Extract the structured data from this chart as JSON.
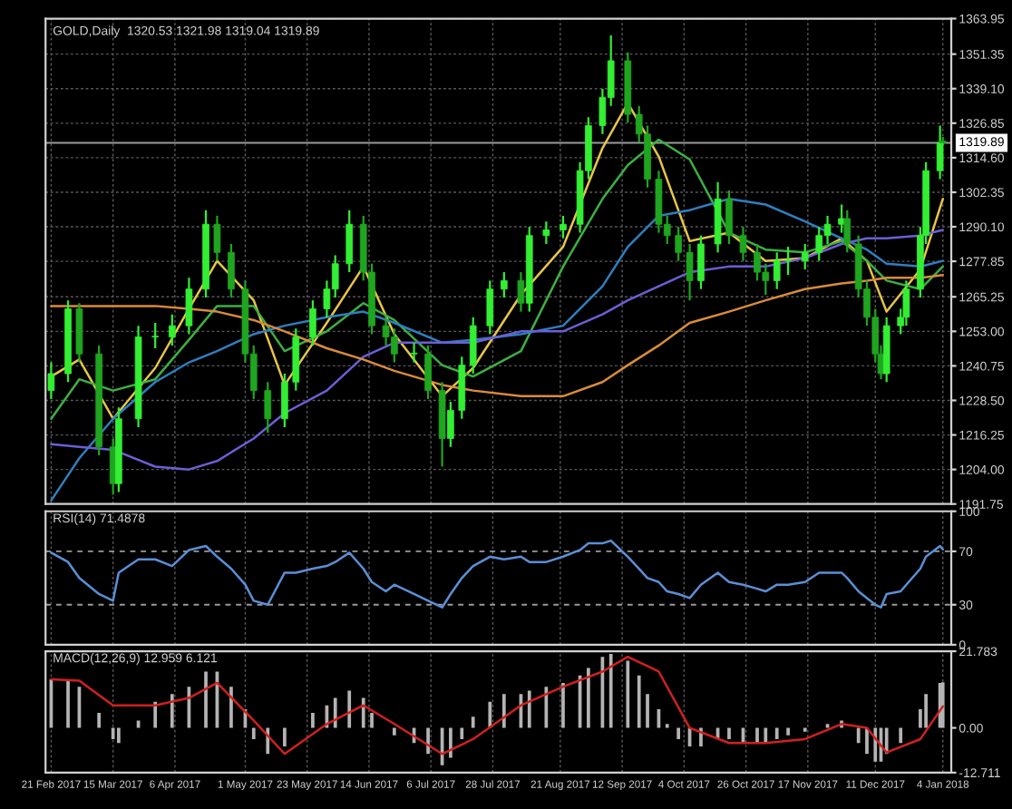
{
  "chart_data": [
    {
      "type": "candlestick",
      "annotations": [
        "GOLD,Daily  1320.53 1321.98 1319.04 1319.89"
      ],
      "x": [
        "2017-02-21",
        "2017-02-27",
        "2017-03-03",
        "2017-03-10",
        "2017-03-15",
        "2017-03-17",
        "2017-03-24",
        "2017-03-30",
        "2017-04-05",
        "2017-04-11",
        "2017-04-17",
        "2017-04-21",
        "2017-04-26",
        "2017-05-01",
        "2017-05-04",
        "2017-05-09",
        "2017-05-15",
        "2017-05-19",
        "2017-05-25",
        "2017-05-30",
        "2017-06-02",
        "2017-06-07",
        "2017-06-12",
        "2017-06-15",
        "2017-06-20",
        "2017-06-23",
        "2017-06-30",
        "2017-07-05",
        "2017-07-10",
        "2017-07-13",
        "2017-07-17",
        "2017-07-21",
        "2017-07-27",
        "2017-08-01",
        "2017-08-07",
        "2017-08-10",
        "2017-08-16",
        "2017-08-22",
        "2017-08-28",
        "2017-08-31",
        "2017-09-05",
        "2017-09-08",
        "2017-09-14",
        "2017-09-18",
        "2017-09-21",
        "2017-09-25",
        "2017-09-28",
        "2017-10-02",
        "2017-10-06",
        "2017-10-10",
        "2017-10-16",
        "2017-10-20",
        "2017-10-25",
        "2017-10-30",
        "2017-11-02",
        "2017-11-06",
        "2017-11-10",
        "2017-11-16",
        "2017-11-21",
        "2017-11-24",
        "2017-11-29",
        "2017-12-01",
        "2017-12-05",
        "2017-12-08",
        "2017-12-11",
        "2017-12-13",
        "2017-12-15",
        "2017-12-20",
        "2017-12-22",
        "2017-12-27",
        "2017-12-29",
        "2018-01-03",
        "2018-01-04"
      ],
      "ohlc": [
        [
          1232,
          1242,
          1229,
          1238
        ],
        [
          1238,
          1264,
          1235,
          1261
        ],
        [
          1261,
          1263,
          1242,
          1245
        ],
        [
          1245,
          1248,
          1209,
          1212
        ],
        [
          1212,
          1215,
          1195,
          1199
        ],
        [
          1199,
          1226,
          1196,
          1222
        ],
        [
          1222,
          1255,
          1219,
          1251
        ],
        [
          1251,
          1256,
          1247,
          1251
        ],
        [
          1251,
          1259,
          1248,
          1255
        ],
        [
          1255,
          1272,
          1252,
          1268
        ],
        [
          1268,
          1296,
          1265,
          1291
        ],
        [
          1291,
          1294,
          1278,
          1281
        ],
        [
          1281,
          1284,
          1265,
          1268
        ],
        [
          1268,
          1271,
          1242,
          1245
        ],
        [
          1245,
          1248,
          1229,
          1232
        ],
        [
          1232,
          1235,
          1217,
          1222
        ],
        [
          1222,
          1238,
          1219,
          1235
        ],
        [
          1235,
          1254,
          1232,
          1251
        ],
        [
          1251,
          1264,
          1248,
          1261
        ],
        [
          1261,
          1271,
          1258,
          1268
        ],
        [
          1268,
          1280,
          1265,
          1277
        ],
        [
          1277,
          1296,
          1274,
          1291
        ],
        [
          1291,
          1294,
          1271,
          1274
        ],
        [
          1274,
          1277,
          1252,
          1255
        ],
        [
          1255,
          1258,
          1248,
          1251
        ],
        [
          1251,
          1254,
          1242,
          1245
        ],
        [
          1245,
          1249,
          1242,
          1245
        ],
        [
          1245,
          1248,
          1229,
          1232
        ],
        [
          1232,
          1235,
          1205,
          1215
        ],
        [
          1215,
          1228,
          1212,
          1225
        ],
        [
          1225,
          1244,
          1222,
          1241
        ],
        [
          1241,
          1258,
          1238,
          1255
        ],
        [
          1255,
          1271,
          1252,
          1268
        ],
        [
          1268,
          1274,
          1265,
          1271
        ],
        [
          1271,
          1274,
          1260,
          1263
        ],
        [
          1263,
          1290,
          1260,
          1287
        ],
        [
          1287,
          1292,
          1284,
          1289
        ],
        [
          1289,
          1294,
          1286,
          1291
        ],
        [
          1291,
          1313,
          1288,
          1310
        ],
        [
          1310,
          1329,
          1307,
          1326
        ],
        [
          1326,
          1339,
          1323,
          1336
        ],
        [
          1336,
          1358,
          1333,
          1349
        ],
        [
          1349,
          1352,
          1327,
          1330
        ],
        [
          1330,
          1333,
          1320,
          1323
        ],
        [
          1323,
          1326,
          1304,
          1307
        ],
        [
          1307,
          1310,
          1288,
          1291
        ],
        [
          1291,
          1294,
          1284,
          1287
        ],
        [
          1287,
          1290,
          1278,
          1281
        ],
        [
          1281,
          1284,
          1264,
          1271
        ],
        [
          1271,
          1287,
          1268,
          1284
        ],
        [
          1284,
          1306,
          1281,
          1300
        ],
        [
          1300,
          1303,
          1284,
          1287
        ],
        [
          1287,
          1290,
          1278,
          1281
        ],
        [
          1281,
          1284,
          1271,
          1274
        ],
        [
          1274,
          1277,
          1266,
          1271
        ],
        [
          1271,
          1281,
          1268,
          1278
        ],
        [
          1278,
          1283,
          1273,
          1278
        ],
        [
          1278,
          1284,
          1275,
          1281
        ],
        [
          1281,
          1290,
          1278,
          1287
        ],
        [
          1287,
          1294,
          1284,
          1291
        ],
        [
          1291,
          1298,
          1288,
          1293
        ],
        [
          1293,
          1296,
          1281,
          1284
        ],
        [
          1284,
          1287,
          1265,
          1268
        ],
        [
          1268,
          1271,
          1255,
          1258
        ],
        [
          1258,
          1261,
          1242,
          1245
        ],
        [
          1245,
          1248,
          1236,
          1238
        ],
        [
          1238,
          1258,
          1235,
          1255
        ],
        [
          1255,
          1261,
          1252,
          1258
        ],
        [
          1258,
          1271,
          1255,
          1268
        ],
        [
          1268,
          1290,
          1265,
          1287
        ],
        [
          1287,
          1313,
          1284,
          1310
        ],
        [
          1310,
          1326,
          1307,
          1320
        ],
        [
          1320.53,
          1321.98,
          1319.04,
          1319.89
        ]
      ],
      "series": [
        {
          "type": "line",
          "color": "#e8c547",
          "x": [
            "2017-02-21",
            "2017-03-03",
            "2017-03-15",
            "2017-03-30",
            "2017-04-11",
            "2017-04-21",
            "2017-05-04",
            "2017-05-15",
            "2017-05-30",
            "2017-06-12",
            "2017-06-23",
            "2017-07-10",
            "2017-07-21",
            "2017-08-07",
            "2017-08-22",
            "2017-09-05",
            "2017-09-14",
            "2017-09-25",
            "2017-10-06",
            "2017-10-20",
            "2017-11-02",
            "2017-11-16",
            "2017-11-29",
            "2017-12-08",
            "2017-12-15",
            "2017-12-27",
            "2018-01-04"
          ],
          "values": [
            1237,
            1243,
            1222,
            1240,
            1261,
            1278,
            1264,
            1234,
            1256,
            1276,
            1252,
            1230,
            1240,
            1266,
            1283,
            1318,
            1334,
            1315,
            1285,
            1288,
            1278,
            1279,
            1286,
            1278,
            1260,
            1275,
            1300
          ]
        },
        {
          "type": "line",
          "color": "#3cb043",
          "x": [
            "2017-02-21",
            "2017-03-03",
            "2017-03-15",
            "2017-03-30",
            "2017-04-11",
            "2017-04-21",
            "2017-05-04",
            "2017-05-15",
            "2017-05-30",
            "2017-06-12",
            "2017-06-23",
            "2017-07-10",
            "2017-07-21",
            "2017-08-07",
            "2017-08-22",
            "2017-09-05",
            "2017-09-14",
            "2017-09-25",
            "2017-10-06",
            "2017-10-20",
            "2017-11-02",
            "2017-11-16",
            "2017-11-29",
            "2017-12-08",
            "2017-12-15",
            "2017-12-27",
            "2018-01-04"
          ],
          "values": [
            1222,
            1236,
            1232,
            1236,
            1250,
            1262,
            1262,
            1246,
            1253,
            1263,
            1257,
            1241,
            1237,
            1246,
            1276,
            1300,
            1312,
            1321,
            1314,
            1288,
            1282,
            1281,
            1285,
            1278,
            1271,
            1268,
            1276
          ]
        },
        {
          "type": "line",
          "color": "#2f7fbf",
          "x": [
            "2017-02-21",
            "2017-03-03",
            "2017-03-15",
            "2017-03-30",
            "2017-04-11",
            "2017-04-21",
            "2017-05-04",
            "2017-05-15",
            "2017-05-30",
            "2017-06-12",
            "2017-06-23",
            "2017-07-10",
            "2017-07-21",
            "2017-08-07",
            "2017-08-22",
            "2017-09-05",
            "2017-09-14",
            "2017-09-25",
            "2017-10-06",
            "2017-10-20",
            "2017-11-02",
            "2017-11-16",
            "2017-11-29",
            "2017-12-08",
            "2017-12-15",
            "2017-12-27",
            "2018-01-04"
          ],
          "values": [
            1193,
            1208,
            1222,
            1235,
            1242,
            1246,
            1252,
            1255,
            1258,
            1260,
            1256,
            1249,
            1250,
            1252,
            1255,
            1269,
            1283,
            1294,
            1296,
            1300,
            1298,
            1292,
            1286,
            1282,
            1277,
            1276,
            1278
          ]
        },
        {
          "type": "line",
          "color": "#6b5fd6",
          "x": [
            "2017-02-21",
            "2017-03-03",
            "2017-03-15",
            "2017-03-30",
            "2017-04-11",
            "2017-04-21",
            "2017-05-04",
            "2017-05-15",
            "2017-05-30",
            "2017-06-12",
            "2017-06-23",
            "2017-07-10",
            "2017-07-21",
            "2017-08-07",
            "2017-08-22",
            "2017-09-05",
            "2017-09-14",
            "2017-09-25",
            "2017-10-06",
            "2017-10-20",
            "2017-11-02",
            "2017-11-16",
            "2017-11-29",
            "2017-12-08",
            "2017-12-15",
            "2017-12-27",
            "2018-01-04"
          ],
          "values": [
            1213,
            1212,
            1211,
            1205,
            1204,
            1207,
            1215,
            1224,
            1232,
            1244,
            1249,
            1249,
            1249,
            1253,
            1253,
            1259,
            1264,
            1269,
            1274,
            1276,
            1276,
            1279,
            1284,
            1286,
            1286,
            1287,
            1289
          ]
        },
        {
          "type": "line",
          "color": "#d98c3a",
          "x": [
            "2017-02-21",
            "2017-03-03",
            "2017-03-15",
            "2017-03-30",
            "2017-04-11",
            "2017-04-21",
            "2017-05-04",
            "2017-05-15",
            "2017-05-30",
            "2017-06-12",
            "2017-06-23",
            "2017-07-10",
            "2017-07-21",
            "2017-08-07",
            "2017-08-22",
            "2017-09-05",
            "2017-09-14",
            "2017-09-25",
            "2017-10-06",
            "2017-10-20",
            "2017-11-02",
            "2017-11-16",
            "2017-11-29",
            "2017-12-08",
            "2017-12-15",
            "2017-12-27",
            "2018-01-04"
          ],
          "values": [
            1262,
            1262,
            1262,
            1262,
            1261,
            1260,
            1257,
            1253,
            1247,
            1243,
            1239,
            1234,
            1232,
            1230,
            1230,
            1235,
            1241,
            1248,
            1256,
            1260,
            1264,
            1268,
            1270,
            1271,
            1272,
            1272,
            1273
          ]
        }
      ],
      "ref_lines": [
        {
          "axis": "y",
          "value": 1319.89,
          "label": "1319.89",
          "color": "#9a9a9a",
          "line_style": "solid"
        }
      ],
      "xlim": [
        "2017-02-19",
        "2018-01-07"
      ],
      "xticks": [
        {
          "value": "2017-02-21",
          "label": null
        },
        {
          "value": "2017-03-15",
          "label": null
        },
        {
          "value": "2017-04-06",
          "label": null
        },
        {
          "value": "2017-05-01",
          "label": null
        },
        {
          "value": "2017-05-23",
          "label": null
        },
        {
          "value": "2017-06-14",
          "label": null
        },
        {
          "value": "2017-07-06",
          "label": null
        },
        {
          "value": "2017-07-28",
          "label": null
        },
        {
          "value": "2017-08-21",
          "label": null
        },
        {
          "value": "2017-09-12",
          "label": null
        },
        {
          "value": "2017-10-04",
          "label": null
        },
        {
          "value": "2017-10-26",
          "label": null
        },
        {
          "value": "2017-11-17",
          "label": null
        },
        {
          "value": "2017-12-11",
          "label": null
        },
        {
          "value": "2018-01-04",
          "label": null
        }
      ],
      "ylim": [
        1191.75,
        1363.95
      ],
      "yticks": [
        1191.75,
        {
          "value": 1204.0,
          "label": "1204.00"
        },
        1216.25,
        {
          "value": 1228.5,
          "label": "1228.50"
        },
        1240.75,
        {
          "value": 1253.0,
          "label": "1253.00"
        },
        1265.25,
        1277.85,
        {
          "value": 1290.1,
          "label": "1290.10"
        },
        1302.35,
        {
          "value": 1314.6,
          "label": "1314.60"
        },
        1326.85,
        {
          "value": 1339.1,
          "label": "1339.10"
        },
        1351.35,
        1363.95
      ],
      "grid": true,
      "tick_labels": "y"
    },
    {
      "type": "line",
      "annotations": [
        "RSI(14) 71.4878"
      ],
      "x": [
        "2017-02-21",
        "2017-02-27",
        "2017-03-03",
        "2017-03-10",
        "2017-03-15",
        "2017-03-17",
        "2017-03-24",
        "2017-03-30",
        "2017-04-05",
        "2017-04-11",
        "2017-04-17",
        "2017-04-21",
        "2017-04-26",
        "2017-05-01",
        "2017-05-04",
        "2017-05-09",
        "2017-05-15",
        "2017-05-19",
        "2017-05-25",
        "2017-05-30",
        "2017-06-02",
        "2017-06-07",
        "2017-06-12",
        "2017-06-15",
        "2017-06-20",
        "2017-06-23",
        "2017-06-30",
        "2017-07-05",
        "2017-07-10",
        "2017-07-13",
        "2017-07-17",
        "2017-07-21",
        "2017-07-27",
        "2017-08-01",
        "2017-08-07",
        "2017-08-10",
        "2017-08-16",
        "2017-08-22",
        "2017-08-28",
        "2017-08-31",
        "2017-09-05",
        "2017-09-08",
        "2017-09-14",
        "2017-09-18",
        "2017-09-21",
        "2017-09-25",
        "2017-09-28",
        "2017-10-02",
        "2017-10-06",
        "2017-10-10",
        "2017-10-16",
        "2017-10-20",
        "2017-10-25",
        "2017-10-30",
        "2017-11-02",
        "2017-11-06",
        "2017-11-10",
        "2017-11-16",
        "2017-11-21",
        "2017-11-24",
        "2017-11-29",
        "2017-12-01",
        "2017-12-05",
        "2017-12-08",
        "2017-12-11",
        "2017-12-13",
        "2017-12-15",
        "2017-12-20",
        "2017-12-22",
        "2017-12-27",
        "2017-12-29",
        "2018-01-03",
        "2018-01-04"
      ],
      "series": [
        {
          "type": "line",
          "color": "#5b8fd6",
          "values": [
            69,
            62,
            50,
            38,
            33,
            54,
            64,
            64,
            59,
            71,
            74,
            66,
            57,
            45,
            33,
            30,
            54,
            54,
            57,
            59,
            62,
            69,
            57,
            47,
            40,
            45,
            38,
            33,
            28,
            38,
            50,
            59,
            66,
            64,
            66,
            62,
            62,
            66,
            71,
            76,
            76,
            78,
            66,
            57,
            50,
            47,
            40,
            38,
            35,
            45,
            54,
            47,
            45,
            42,
            40,
            45,
            45,
            47,
            54,
            54,
            54,
            50,
            40,
            35,
            30,
            28,
            38,
            40,
            45,
            57,
            66,
            74,
            71.5
          ]
        }
      ],
      "ref_lines": [
        {
          "axis": "y",
          "value": 70,
          "color": "#9a9a9a",
          "line_style": "dashed"
        },
        {
          "axis": "y",
          "value": 30,
          "color": "#9a9a9a",
          "line_style": "dashed"
        }
      ],
      "xlim": [
        "2017-02-19",
        "2018-01-07"
      ],
      "xticks": [
        {
          "value": "2017-02-21",
          "label": null
        },
        {
          "value": "2017-03-15",
          "label": null
        },
        {
          "value": "2017-04-06",
          "label": null
        },
        {
          "value": "2017-05-01",
          "label": null
        },
        {
          "value": "2017-05-23",
          "label": null
        },
        {
          "value": "2017-06-14",
          "label": null
        },
        {
          "value": "2017-07-06",
          "label": null
        },
        {
          "value": "2017-07-28",
          "label": null
        },
        {
          "value": "2017-08-21",
          "label": null
        },
        {
          "value": "2017-09-12",
          "label": null
        },
        {
          "value": "2017-10-04",
          "label": null
        },
        {
          "value": "2017-10-26",
          "label": null
        },
        {
          "value": "2017-11-17",
          "label": null
        },
        {
          "value": "2017-12-11",
          "label": null
        },
        {
          "value": "2018-01-04",
          "label": null
        }
      ],
      "ylim": [
        0,
        100
      ],
      "yticks": [
        0,
        30,
        70,
        100
      ],
      "grid": "x",
      "tick_labels": "y"
    },
    {
      "type": "bar",
      "annotations": [
        "MACD(12,26,9) 12.959 6.121"
      ],
      "x": [
        "2017-02-21",
        "2017-02-27",
        "2017-03-03",
        "2017-03-10",
        "2017-03-15",
        "2017-03-17",
        "2017-03-24",
        "2017-03-30",
        "2017-04-05",
        "2017-04-11",
        "2017-04-17",
        "2017-04-21",
        "2017-04-26",
        "2017-05-01",
        "2017-05-04",
        "2017-05-09",
        "2017-05-15",
        "2017-05-19",
        "2017-05-25",
        "2017-05-30",
        "2017-06-02",
        "2017-06-07",
        "2017-06-12",
        "2017-06-15",
        "2017-06-20",
        "2017-06-23",
        "2017-06-30",
        "2017-07-05",
        "2017-07-10",
        "2017-07-13",
        "2017-07-17",
        "2017-07-21",
        "2017-07-27",
        "2017-08-01",
        "2017-08-07",
        "2017-08-10",
        "2017-08-16",
        "2017-08-22",
        "2017-08-28",
        "2017-08-31",
        "2017-09-05",
        "2017-09-08",
        "2017-09-14",
        "2017-09-18",
        "2017-09-21",
        "2017-09-25",
        "2017-09-28",
        "2017-10-02",
        "2017-10-06",
        "2017-10-10",
        "2017-10-16",
        "2017-10-20",
        "2017-10-25",
        "2017-10-30",
        "2017-11-02",
        "2017-11-06",
        "2017-11-10",
        "2017-11-16",
        "2017-11-21",
        "2017-11-24",
        "2017-11-29",
        "2017-12-01",
        "2017-12-05",
        "2017-12-08",
        "2017-12-11",
        "2017-12-13",
        "2017-12-15",
        "2017-12-20",
        "2017-12-22",
        "2017-12-27",
        "2017-12-29",
        "2018-01-03",
        "2018-01-04"
      ],
      "series": [
        {
          "type": "bar",
          "color": "#b4b4b4",
          "values": [
            13.8,
            13.8,
            11.7,
            4.3,
            -3.2,
            -4.3,
            2.1,
            7.4,
            9.6,
            11.7,
            16,
            16,
            11.7,
            5.3,
            -3.2,
            -7.4,
            -5.3,
            0,
            4.3,
            6.4,
            8.5,
            10.6,
            8.5,
            4.3,
            0,
            -2.1,
            -4.3,
            -7.4,
            -10.6,
            -8.5,
            -3.2,
            3.2,
            7.4,
            9.6,
            9.6,
            10.6,
            11.7,
            12.8,
            14.9,
            17,
            20.2,
            21,
            19.1,
            14.9,
            9.6,
            5.3,
            1.1,
            -3.2,
            -5.3,
            -5.3,
            -3.2,
            -3.2,
            -4.3,
            -4.3,
            -4.3,
            -3.2,
            -2.1,
            -1.1,
            0,
            1.1,
            2.1,
            0,
            -4.3,
            -7.4,
            -9.6,
            -9.6,
            -7.4,
            -4.3,
            0,
            5.3,
            9.6,
            12.8,
            13.0
          ]
        },
        {
          "type": "line",
          "color": "#d02020",
          "x": [
            "2017-02-21",
            "2017-03-03",
            "2017-03-15",
            "2017-03-30",
            "2017-04-11",
            "2017-04-21",
            "2017-05-04",
            "2017-05-15",
            "2017-05-30",
            "2017-06-12",
            "2017-06-23",
            "2017-07-10",
            "2017-07-21",
            "2017-08-07",
            "2017-08-22",
            "2017-09-05",
            "2017-09-14",
            "2017-09-25",
            "2017-10-06",
            "2017-10-20",
            "2017-11-02",
            "2017-11-16",
            "2017-11-29",
            "2017-12-08",
            "2017-12-15",
            "2017-12-27",
            "2018-01-04"
          ],
          "values": [
            13.8,
            13.4,
            6.4,
            6.4,
            8.5,
            12.8,
            2.1,
            -7.4,
            1.1,
            6.4,
            1.1,
            -7.4,
            -3.2,
            6.4,
            11.7,
            16,
            20.2,
            16,
            0,
            -4.3,
            -4.3,
            -3.2,
            1.1,
            0,
            -7,
            -3.2,
            6.1
          ]
        }
      ],
      "xlim": [
        "2017-02-19",
        "2018-01-07"
      ],
      "xticks": [
        {
          "value": "2017-02-21",
          "label": "21 Feb 2017"
        },
        {
          "value": "2017-03-15",
          "label": "15 Mar 2017"
        },
        {
          "value": "2017-04-06",
          "label": "6 Apr 2017"
        },
        {
          "value": "2017-05-01",
          "label": "1 May 2017"
        },
        {
          "value": "2017-05-23",
          "label": "23 May 2017"
        },
        {
          "value": "2017-06-14",
          "label": "14 Jun 2017"
        },
        {
          "value": "2017-07-06",
          "label": "6 Jul 2017"
        },
        {
          "value": "2017-07-28",
          "label": "28 Jul 2017"
        },
        {
          "value": "2017-08-21",
          "label": "21 Aug 2017"
        },
        {
          "value": "2017-09-12",
          "label": "12 Sep 2017"
        },
        {
          "value": "2017-10-04",
          "label": "4 Oct 2017"
        },
        {
          "value": "2017-10-26",
          "label": "26 Oct 2017"
        },
        {
          "value": "2017-11-17",
          "label": "17 Nov 2017"
        },
        {
          "value": "2017-12-11",
          "label": "11 Dec 2017"
        },
        {
          "value": "2018-01-04",
          "label": "4 Jan 2018"
        }
      ],
      "ylim": [
        -12.711,
        21.783
      ],
      "yticks": [
        -12.711,
        {
          "value": 0,
          "label": "0.00"
        },
        21.783
      ],
      "grid": "x"
    }
  ]
}
